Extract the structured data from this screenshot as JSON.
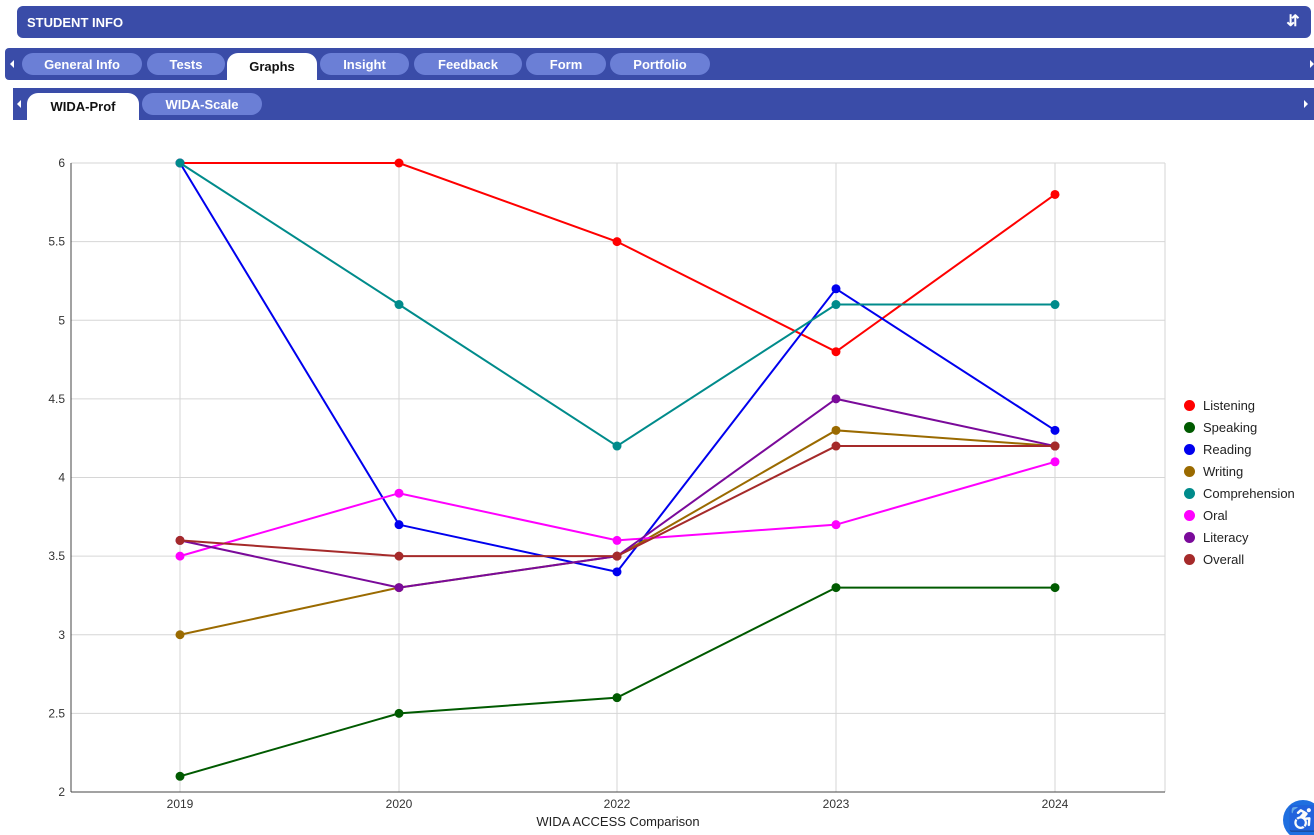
{
  "header": {
    "title": "STUDENT INFO",
    "refresh_icon": "refresh-icon"
  },
  "tabs": [
    {
      "label": "General Info"
    },
    {
      "label": "Tests"
    },
    {
      "label": "Graphs"
    },
    {
      "label": "Insight"
    },
    {
      "label": "Feedback"
    },
    {
      "label": "Form"
    },
    {
      "label": "Portfolio"
    }
  ],
  "active_tab": "Graphs",
  "subtabs": [
    {
      "label": "WIDA-Prof"
    },
    {
      "label": "WIDA-Scale"
    }
  ],
  "active_subtab": "WIDA-Prof",
  "accessibility_icon": "accessibility-icon",
  "chart_data": {
    "type": "line",
    "categories": [
      "2019",
      "2020",
      "2022",
      "2023",
      "2024"
    ],
    "xlabel": "WIDA ACCESS Comparison",
    "ylabel": "",
    "ylim": [
      2,
      6
    ],
    "yticks": [
      "2",
      "2.5",
      "3",
      "3.5",
      "4",
      "4.5",
      "5",
      "5.5",
      "6"
    ],
    "grid": true,
    "legend_position": "right",
    "series": [
      {
        "name": "Listening",
        "color": "#ff0000",
        "values": [
          6,
          6,
          5.5,
          4.8,
          5.8
        ]
      },
      {
        "name": "Speaking",
        "color": "#005a00",
        "values": [
          2.1,
          2.5,
          2.6,
          3.3,
          3.3
        ]
      },
      {
        "name": "Reading",
        "color": "#0000ee",
        "values": [
          6,
          3.7,
          3.4,
          5.2,
          4.3
        ]
      },
      {
        "name": "Writing",
        "color": "#9a6a00",
        "values": [
          3,
          3.3,
          3.5,
          4.3,
          4.2
        ]
      },
      {
        "name": "Comprehension",
        "color": "#008b8b",
        "values": [
          6,
          5.1,
          4.2,
          5.1,
          5.1
        ]
      },
      {
        "name": "Oral",
        "color": "#ff00ff",
        "values": [
          3.5,
          3.9,
          3.6,
          3.7,
          4.1
        ]
      },
      {
        "name": "Literacy",
        "color": "#7a0a9a",
        "values": [
          3.6,
          3.3,
          3.5,
          4.5,
          4.2
        ]
      },
      {
        "name": "Overall",
        "color": "#a52a2a",
        "values": [
          3.6,
          3.5,
          3.5,
          4.2,
          4.2
        ]
      }
    ]
  }
}
